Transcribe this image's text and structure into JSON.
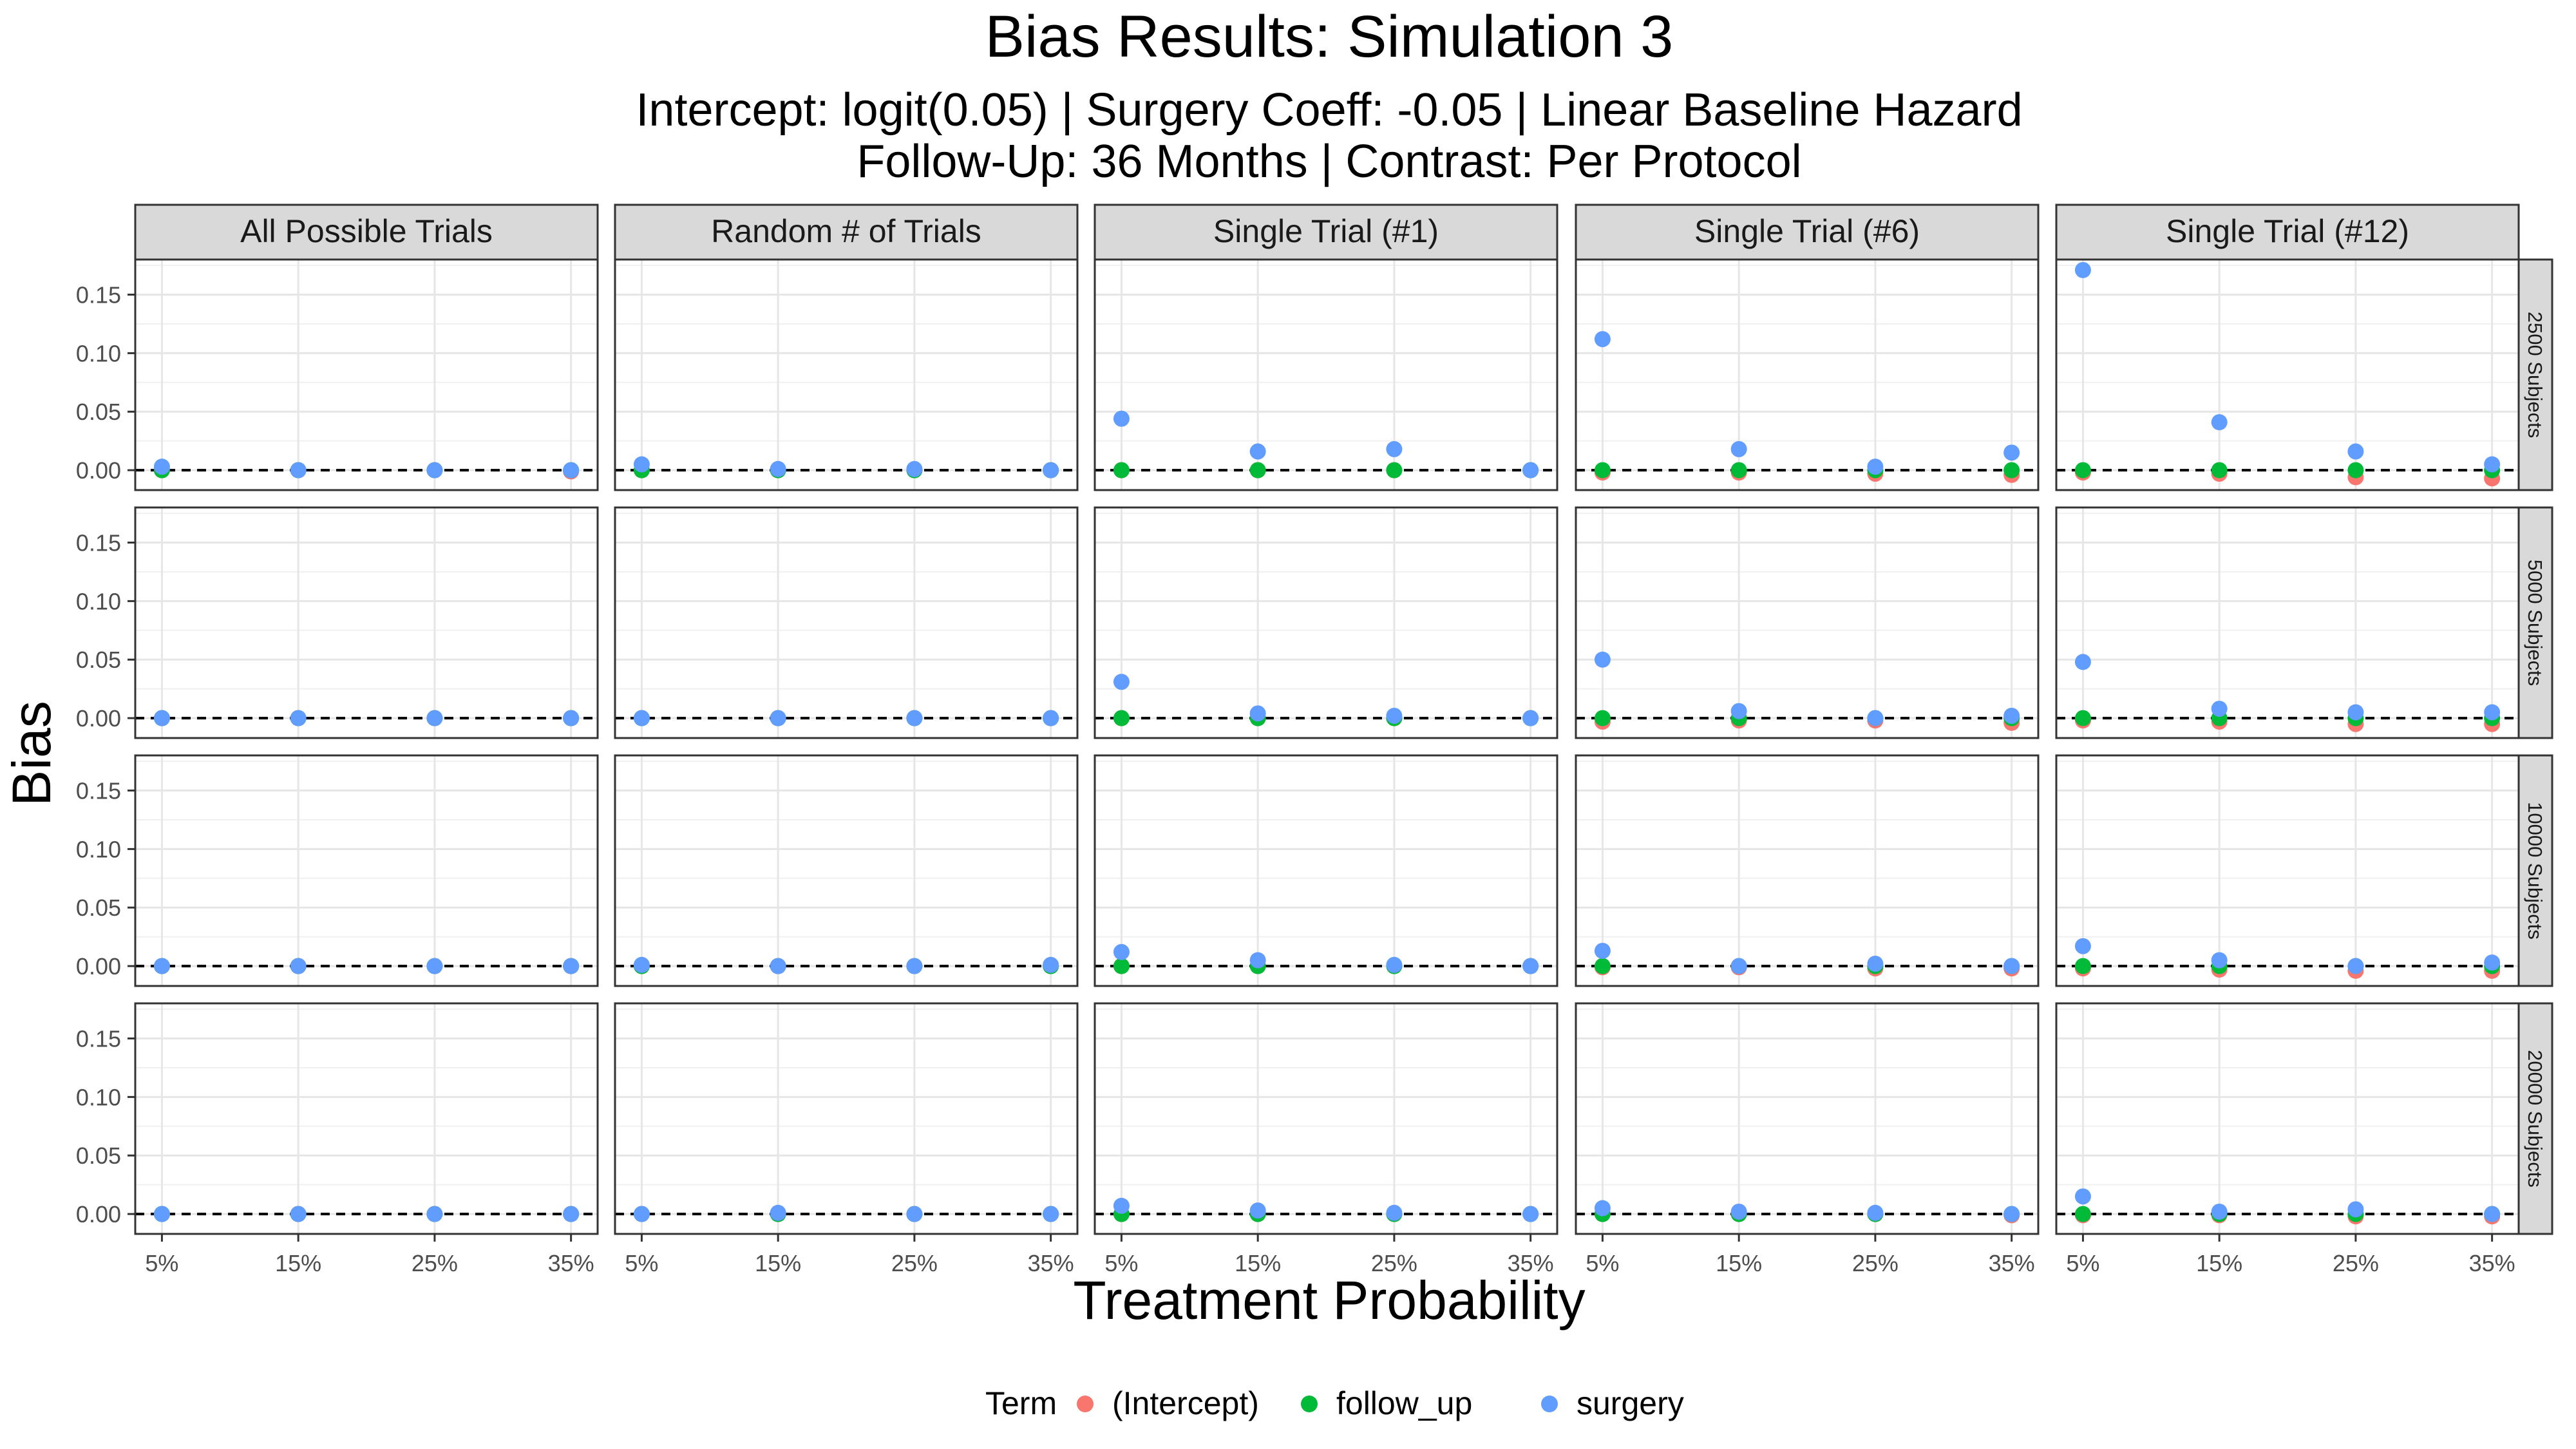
{
  "chart_data": {
    "type": "scatter",
    "facet": "grid",
    "title": "Bias Results: Simulation 3",
    "subtitle_line1": "Intercept: logit(0.05) | Surgery Coeff: -0.05 | Linear Baseline Hazard",
    "subtitle_line2": "Follow-Up: 36 Months | Contrast: Per Protocol",
    "xlabel": "Treatment Probability",
    "ylabel": "Bias",
    "x_categories": [
      "5%",
      "15%",
      "25%",
      "35%"
    ],
    "y_ticks": [
      "0.00",
      "0.05",
      "0.10",
      "0.15"
    ],
    "ylim": [
      -0.017,
      0.18
    ],
    "grid": true,
    "legend_position": "bottom",
    "legend_title": "Term",
    "columns": [
      "All Possible Trials",
      "Random # of Trials",
      "Single Trial (#1)",
      "Single Trial (#6)",
      "Single Trial (#12)"
    ],
    "rows": [
      "2500 Subjects",
      "5000 Subjects",
      "10000 Subjects",
      "20000 Subjects"
    ],
    "series": [
      {
        "name": "(Intercept)",
        "color": "#F8766D",
        "values": [
          [
            [
              0.0,
              0.0,
              0.0,
              -0.001
            ],
            [
              0.0,
              0.0,
              0.0,
              0.0
            ],
            [
              0.0,
              0.0,
              0.0,
              0.0
            ],
            [
              -0.002,
              -0.002,
              -0.003,
              -0.004
            ],
            [
              -0.002,
              -0.003,
              -0.006,
              -0.007
            ]
          ],
          [
            [
              0.0,
              0.0,
              0.0,
              0.0
            ],
            [
              0.0,
              0.0,
              0.0,
              0.0
            ],
            [
              0.0,
              0.0,
              0.0,
              0.0
            ],
            [
              -0.003,
              -0.002,
              -0.002,
              -0.004
            ],
            [
              -0.002,
              -0.003,
              -0.005,
              -0.005
            ]
          ],
          [
            [
              0.0,
              0.0,
              0.0,
              0.0
            ],
            [
              0.0,
              0.0,
              0.0,
              0.0
            ],
            [
              0.0,
              0.0,
              0.0,
              0.0
            ],
            [
              -0.001,
              -0.001,
              -0.002,
              -0.002
            ],
            [
              -0.002,
              -0.003,
              -0.004,
              -0.004
            ]
          ],
          [
            [
              0.0,
              0.0,
              0.0,
              0.0
            ],
            [
              0.0,
              0.0,
              0.0,
              0.0
            ],
            [
              0.0,
              0.0,
              0.0,
              0.0
            ],
            [
              0.0,
              0.0,
              0.0,
              -0.001
            ],
            [
              -0.001,
              -0.001,
              -0.002,
              -0.002
            ]
          ]
        ]
      },
      {
        "name": "follow_up",
        "color": "#00BA38",
        "values": [
          [
            [
              0.0,
              0.0,
              0.0,
              0.0
            ],
            [
              0.0,
              0.0,
              0.0,
              0.0
            ],
            [
              0.0,
              0.0,
              0.0,
              0.0
            ],
            [
              0.0,
              0.0,
              0.0,
              0.0
            ],
            [
              0.0,
              0.0,
              0.0,
              0.0
            ]
          ],
          [
            [
              0.0,
              0.0,
              0.0,
              0.0
            ],
            [
              0.0,
              0.0,
              0.0,
              0.0
            ],
            [
              0.0,
              0.0,
              0.0,
              0.0
            ],
            [
              0.0,
              0.0,
              0.0,
              0.0
            ],
            [
              0.0,
              0.0,
              0.0,
              0.0
            ]
          ],
          [
            [
              0.0,
              0.0,
              0.0,
              0.0
            ],
            [
              0.0,
              0.0,
              0.0,
              0.0
            ],
            [
              0.0,
              0.0,
              0.0,
              0.0
            ],
            [
              0.0,
              0.0,
              0.0,
              0.0
            ],
            [
              0.0,
              0.0,
              0.0,
              0.0
            ]
          ],
          [
            [
              0.0,
              0.0,
              0.0,
              0.0
            ],
            [
              0.0,
              0.0,
              0.0,
              0.0
            ],
            [
              0.0,
              0.0,
              0.0,
              0.0
            ],
            [
              0.0,
              0.0,
              0.0,
              0.0
            ],
            [
              0.0,
              0.0,
              0.0,
              0.0
            ]
          ]
        ]
      },
      {
        "name": "surgery",
        "color": "#619CFF",
        "values": [
          [
            [
              0.003,
              0.0,
              0.0,
              0.0
            ],
            [
              0.005,
              0.001,
              0.001,
              0.0
            ],
            [
              0.044,
              0.016,
              0.018,
              0.0
            ],
            [
              0.112,
              0.018,
              0.003,
              0.015
            ],
            [
              0.171,
              0.041,
              0.016,
              0.005
            ]
          ],
          [
            [
              0.0,
              0.0,
              0.0,
              0.0
            ],
            [
              0.0,
              0.0,
              0.0,
              0.0
            ],
            [
              0.031,
              0.004,
              0.002,
              0.0
            ],
            [
              0.05,
              0.006,
              0.0,
              0.002
            ],
            [
              0.048,
              0.008,
              0.005,
              0.005
            ]
          ],
          [
            [
              0.0,
              0.0,
              0.0,
              0.0
            ],
            [
              0.001,
              0.0,
              0.0,
              0.001
            ],
            [
              0.012,
              0.005,
              0.001,
              0.0
            ],
            [
              0.013,
              0.0,
              0.002,
              0.0
            ],
            [
              0.017,
              0.005,
              0.0,
              0.003
            ]
          ],
          [
            [
              0.0,
              0.0,
              0.0,
              0.0
            ],
            [
              0.0,
              0.001,
              0.0,
              0.0
            ],
            [
              0.007,
              0.003,
              0.001,
              0.0
            ],
            [
              0.005,
              0.002,
              0.001,
              0.0
            ],
            [
              0.015,
              0.002,
              0.004,
              0.0
            ]
          ]
        ]
      }
    ]
  }
}
